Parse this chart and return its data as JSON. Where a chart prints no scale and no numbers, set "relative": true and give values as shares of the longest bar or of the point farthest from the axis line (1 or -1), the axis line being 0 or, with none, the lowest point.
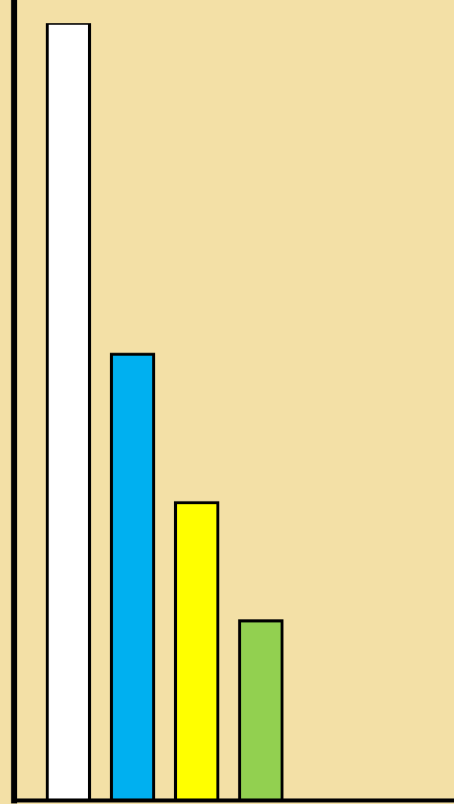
{
  "chart_data": {
    "type": "bar",
    "relative": true,
    "categories": [
      null,
      null,
      null,
      null
    ],
    "values": [
      1,
      0.574,
      0.383,
      0.231
    ],
    "colors": [
      "#ffffff",
      "#00b0f0",
      "#ffff00",
      "#92d050"
    ],
    "grid": false,
    "legend": false
  }
}
